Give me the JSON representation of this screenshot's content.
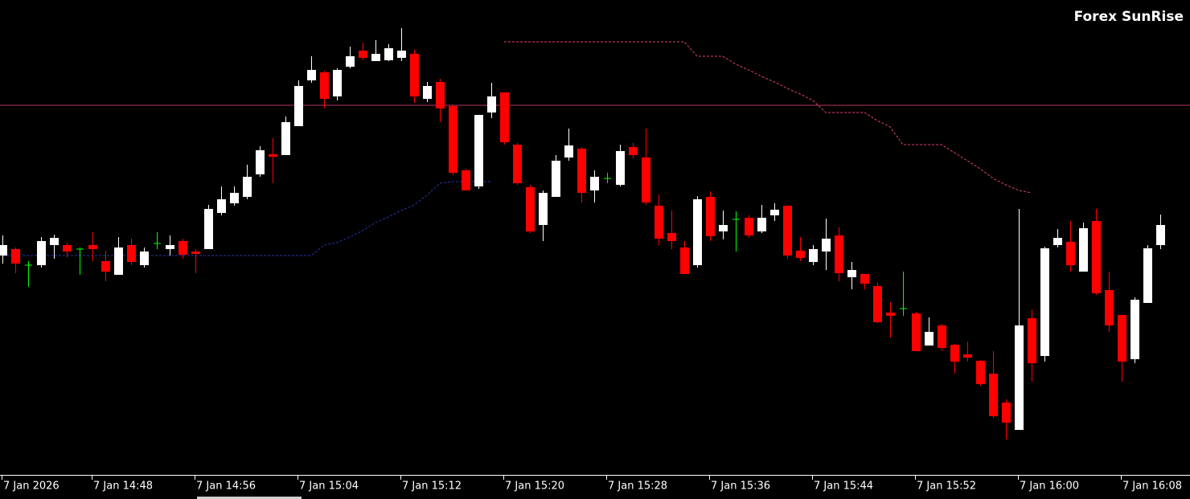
{
  "chart_data": {
    "type": "candlestick",
    "title": "Forex SunRise",
    "categories": [
      "7 Jan 2026",
      null,
      null,
      null,
      null,
      null,
      null,
      "7 Jan 14:48",
      null,
      null,
      null,
      null,
      null,
      null,
      null,
      "7 Jan 14:56",
      null,
      null,
      null,
      null,
      null,
      null,
      null,
      "7 Jan 15:04",
      null,
      null,
      null,
      null,
      null,
      null,
      null,
      "7 Jan 15:12",
      null,
      null,
      null,
      null,
      null,
      null,
      null,
      "7 Jan 15:20",
      null,
      null,
      null,
      null,
      null,
      null,
      null,
      "7 Jan 15:28",
      null,
      null,
      null,
      null,
      null,
      null,
      null,
      "7 Jan 15:36",
      null,
      null,
      null,
      null,
      null,
      null,
      null,
      "7 Jan 15:44",
      null,
      null,
      null,
      null,
      null,
      null,
      null,
      "7 Jan 15:52",
      null,
      null,
      null,
      null,
      null,
      null,
      null,
      "7 Jan 16:00",
      null,
      null,
      null,
      null,
      null,
      null,
      null,
      "7 Jan 16:08",
      null,
      null,
      null
    ],
    "open": [
      0.57282,
      0.5729,
      0.5727,
      0.5727,
      0.57295,
      0.57295,
      0.5729,
      0.57295,
      0.57275,
      0.57258,
      0.57295,
      0.5727,
      0.57297,
      0.5729,
      0.573,
      0.57287,
      0.5729,
      0.57335,
      0.57347,
      0.57355,
      0.57383,
      0.57408,
      0.57407,
      0.57443,
      0.575,
      0.5751,
      0.5748,
      0.57517,
      0.57537,
      0.57524,
      0.57525,
      0.57528,
      0.57533,
      0.57477,
      0.57498,
      0.57468,
      0.57388,
      0.57368,
      0.5746,
      0.57485,
      0.5742,
      0.57367,
      0.5732,
      0.57355,
      0.57404,
      0.57415,
      0.57363,
      0.57378,
      0.5737,
      0.57417,
      0.57404,
      0.57344,
      0.5731,
      0.57292,
      0.5727,
      0.57355,
      0.57312,
      0.57327,
      0.57329,
      0.57312,
      0.57332,
      0.57344,
      0.57288,
      0.57274,
      0.57287,
      0.57307,
      0.57255,
      0.57259,
      0.57244,
      0.57211,
      0.57216,
      0.5721,
      0.5717,
      0.57195,
      0.57171,
      0.57159,
      0.57151,
      0.57135,
      0.57099,
      0.57065,
      0.57204,
      0.57157,
      0.57295,
      0.57299,
      0.57262,
      0.57325,
      0.57239,
      0.57208,
      0.57153,
      0.57223,
      0.57295
    ],
    "high": [
      0.57307,
      0.57292,
      0.57275,
      0.57305,
      0.57308,
      0.57298,
      0.57292,
      0.57311,
      0.57288,
      0.57305,
      0.57303,
      0.57292,
      0.57311,
      0.57307,
      0.57303,
      0.5729,
      0.57345,
      0.57368,
      0.57368,
      0.57395,
      0.57418,
      0.57428,
      0.57455,
      0.575,
      0.5753,
      0.57512,
      0.57515,
      0.57542,
      0.57547,
      0.5755,
      0.57545,
      0.57565,
      0.57538,
      0.57498,
      0.57502,
      0.5747,
      0.5739,
      0.57457,
      0.57497,
      0.57485,
      0.57422,
      0.5737,
      0.57363,
      0.57407,
      0.5744,
      0.57417,
      0.57388,
      0.57385,
      0.5742,
      0.57422,
      0.5744,
      0.57358,
      0.57338,
      0.573,
      0.57356,
      0.57362,
      0.57338,
      0.57337,
      0.57332,
      0.57345,
      0.57347,
      0.57344,
      0.57305,
      0.57295,
      0.57328,
      0.57317,
      0.57274,
      0.57259,
      0.57248,
      0.57224,
      0.57262,
      0.57212,
      0.57205,
      0.57197,
      0.57172,
      0.57175,
      0.57152,
      0.57163,
      0.57103,
      0.5734,
      0.57215,
      0.57293,
      0.57315,
      0.57325,
      0.57323,
      0.5734,
      0.57262,
      0.57208,
      0.5723,
      0.57295,
      0.57333
    ],
    "low": [
      0.57272,
      0.5726,
      0.57243,
      0.57267,
      0.57278,
      0.5728,
      0.57258,
      0.57275,
      0.5725,
      0.57258,
      0.5727,
      0.57267,
      0.5729,
      0.57282,
      0.57278,
      0.5726,
      0.5729,
      0.57332,
      0.57344,
      0.57352,
      0.5738,
      0.57372,
      0.57407,
      0.57443,
      0.57497,
      0.57465,
      0.57475,
      0.57515,
      0.57525,
      0.57524,
      0.57524,
      0.57524,
      0.57472,
      0.57473,
      0.57448,
      0.57382,
      0.57363,
      0.57365,
      0.57453,
      0.5742,
      0.5737,
      0.5731,
      0.573,
      0.57355,
      0.574,
      0.57348,
      0.57348,
      0.57372,
      0.57368,
      0.57403,
      0.57345,
      0.57295,
      0.5729,
      0.57259,
      0.57267,
      0.573,
      0.57302,
      0.57287,
      0.57304,
      0.5731,
      0.57325,
      0.57278,
      0.57275,
      0.5727,
      0.57264,
      0.5725,
      0.5724,
      0.5724,
      0.57198,
      0.5718,
      0.57207,
      0.57163,
      0.5717,
      0.57163,
      0.57135,
      0.5715,
      0.5712,
      0.5708,
      0.57053,
      0.57065,
      0.57125,
      0.5715,
      0.57292,
      0.57262,
      0.57262,
      0.57233,
      0.57187,
      0.57125,
      0.57148,
      0.57223,
      0.5729
    ],
    "close": [
      0.57295,
      0.57272,
      0.5727,
      0.573,
      0.57304,
      0.57287,
      0.5729,
      0.5729,
      0.57262,
      0.57292,
      0.57274,
      0.57287,
      0.57297,
      0.57295,
      0.57283,
      0.57284,
      0.5734,
      0.57352,
      0.5736,
      0.5738,
      0.57413,
      0.57405,
      0.57448,
      0.57493,
      0.57513,
      0.57477,
      0.57513,
      0.5753,
      0.57528,
      0.57533,
      0.5754,
      0.57537,
      0.5748,
      0.57493,
      0.57465,
      0.57385,
      0.57363,
      0.57457,
      0.5748,
      0.57423,
      0.57372,
      0.57312,
      0.5736,
      0.574,
      0.57419,
      0.5736,
      0.5738,
      0.57378,
      0.57412,
      0.57407,
      0.57348,
      0.57303,
      0.573,
      0.57259,
      0.57352,
      0.57306,
      0.5732,
      0.57327,
      0.57307,
      0.57329,
      0.57339,
      0.57282,
      0.57279,
      0.5729,
      0.57303,
      0.5726,
      0.57264,
      0.57247,
      0.57199,
      0.57207,
      0.57216,
      0.57163,
      0.57187,
      0.57167,
      0.5715,
      0.57155,
      0.57122,
      0.57082,
      0.57074,
      0.57195,
      0.57148,
      0.57291,
      0.57304,
      0.5727,
      0.57316,
      0.57235,
      0.57195,
      0.5715,
      0.57227,
      0.57291,
      0.5732
    ],
    "up_color": "#ffffff",
    "down_color": "#ff0000",
    "doji_color": "#00ff00",
    "series": [
      {
        "color": "#2233aa",
        "values": [
          0.57282,
          0.57282,
          0.57282,
          0.57282,
          0.57282,
          0.57282,
          0.57282,
          0.57282,
          0.57282,
          0.57282,
          0.57282,
          0.57282,
          0.57282,
          0.57282,
          0.57282,
          0.57282,
          0.57282,
          0.57282,
          0.57282,
          0.57282,
          0.57282,
          0.57282,
          0.57282,
          0.57282,
          0.57282,
          0.57295,
          0.57298,
          0.57305,
          0.57313,
          0.57323,
          0.5733,
          0.57338,
          0.57345,
          0.57357,
          0.57372,
          0.57374,
          0.57374,
          0.57374,
          0.57374,
          null,
          null,
          null,
          null,
          null,
          null,
          null,
          null,
          null,
          null,
          null,
          null,
          null,
          null,
          null,
          null,
          null,
          null,
          null,
          null,
          null,
          null,
          null,
          null,
          null,
          null,
          null,
          null,
          null,
          null,
          null,
          null,
          null,
          null,
          null,
          null,
          null,
          null,
          null,
          null,
          null,
          null,
          null,
          null,
          null,
          null,
          null,
          null,
          null,
          null,
          null,
          null
        ]
      },
      {
        "color": "#e0406e",
        "values": [
          null,
          null,
          null,
          null,
          null,
          null,
          null,
          null,
          null,
          null,
          null,
          null,
          null,
          null,
          null,
          null,
          null,
          null,
          null,
          null,
          null,
          null,
          null,
          null,
          null,
          null,
          null,
          null,
          null,
          null,
          null,
          null,
          null,
          null,
          null,
          null,
          null,
          null,
          null,
          0.57548,
          0.57548,
          0.57548,
          0.57548,
          0.57548,
          0.57548,
          0.57548,
          0.57548,
          0.57548,
          0.57548,
          0.57548,
          0.57548,
          0.57548,
          0.57548,
          0.57548,
          0.5753,
          0.5753,
          0.5753,
          0.5752,
          0.57513,
          0.57505,
          0.57498,
          0.5749,
          0.57483,
          0.57475,
          0.5746,
          0.5746,
          0.5746,
          0.5746,
          0.5745,
          0.57442,
          0.5742,
          0.5742,
          0.5742,
          0.5742,
          0.5741,
          0.574,
          0.5739,
          0.57378,
          0.5737,
          0.57363,
          0.5736,
          null,
          null,
          null,
          null,
          null,
          null,
          null,
          null,
          null,
          null
        ]
      }
    ],
    "hline": {
      "value": 0.57469,
      "color": "#b8336a"
    },
    "ylim": [
      0.5701,
      0.576
    ],
    "background": "#000000"
  }
}
